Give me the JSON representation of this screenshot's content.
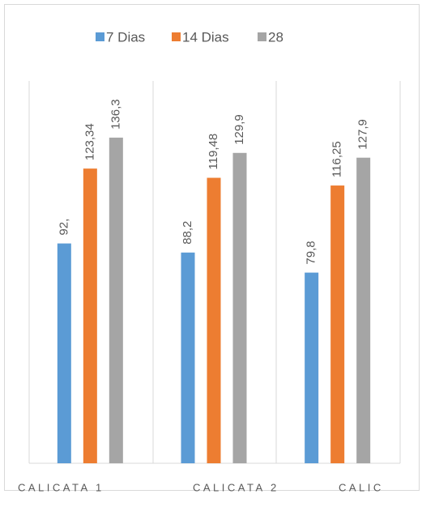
{
  "chart_data": {
    "type": "bar",
    "categories": [
      "CALICATA 1",
      "CALICATA 2",
      "CALIC"
    ],
    "series": [
      {
        "name": "7 Dias",
        "color": "#5b9bd5",
        "values": [
          92,
          88.2,
          79.8
        ],
        "value_labels": [
          "92,",
          "88,2",
          "79,8"
        ]
      },
      {
        "name": "14 Dias",
        "color": "#ed7d31",
        "values": [
          123.34,
          119.48,
          116.25
        ],
        "value_labels": [
          "123,34",
          "119,48",
          "116,25"
        ]
      },
      {
        "name": "28",
        "color": "#a5a5a5",
        "values": [
          136.3,
          129.9,
          127.9
        ],
        "value_labels": [
          "136,3",
          "129,9",
          "127,9"
        ]
      }
    ],
    "ylim": [
      0,
      160
    ],
    "legend": "top"
  }
}
